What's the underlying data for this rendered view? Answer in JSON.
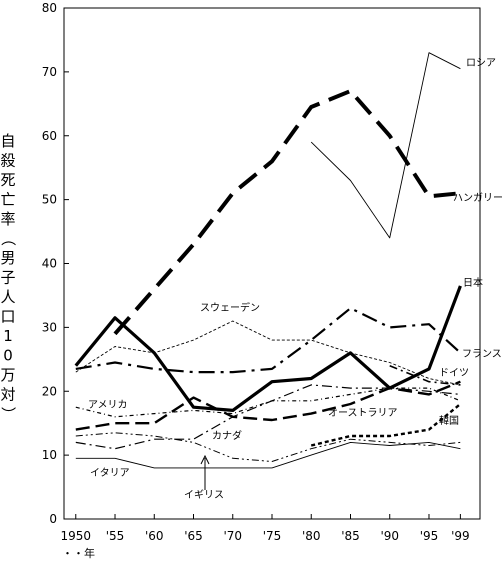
{
  "chart_data": {
    "type": "line",
    "ylabel": "自殺死亡率（男子人口10万対）",
    "xlabel": "年",
    "ylim": [
      0,
      80
    ],
    "yticks": [
      "0",
      "10",
      "20",
      "30",
      "40",
      "50",
      "60",
      "70",
      "80"
    ],
    "xticks": [
      "1950",
      "'55",
      "'60",
      "'65",
      "'70",
      "'75",
      "'80",
      "'85",
      "'90",
      "'95",
      "'99"
    ],
    "x": [
      1950,
      1955,
      1960,
      1965,
      1970,
      1975,
      1980,
      1985,
      1990,
      1995,
      1999
    ],
    "grid": false,
    "series": [
      {
        "name": "ハンガリー",
        "values": [
          null,
          29,
          36,
          43,
          51,
          56,
          64.5,
          67,
          60,
          50.5,
          51
        ]
      },
      {
        "name": "ロシア",
        "values": [
          null,
          null,
          null,
          null,
          null,
          null,
          59,
          53,
          44,
          73,
          70.5
        ]
      },
      {
        "name": "日本",
        "values": [
          24,
          31.5,
          26,
          17.5,
          17,
          21.5,
          22,
          26,
          20.5,
          23.5,
          36.5
        ]
      },
      {
        "name": "フランス",
        "values": [
          23.5,
          24.5,
          23.5,
          23,
          23,
          23.5,
          28,
          33,
          30,
          30.5,
          26
        ]
      },
      {
        "name": "スウェーデン",
        "values": [
          23,
          27,
          26,
          28,
          31,
          28,
          28,
          26,
          24.5,
          22,
          21
        ]
      },
      {
        "name": "ドイツ",
        "values": [
          null,
          null,
          null,
          null,
          null,
          null,
          null,
          null,
          24,
          21.5,
          21
        ]
      },
      {
        "name": "オーストラリア",
        "values": [
          14,
          15,
          15,
          19,
          16,
          15.5,
          16.5,
          18,
          20.5,
          19.5,
          21.5
        ]
      },
      {
        "name": "アメリカ",
        "values": [
          17.5,
          16,
          16.5,
          17,
          16.5,
          18.5,
          18.5,
          19.5,
          20.5,
          20.5,
          18.5
        ]
      },
      {
        "name": "カナダ",
        "values": [
          12,
          11,
          12.5,
          12.5,
          16,
          18.5,
          21,
          20.5,
          20.5,
          20,
          19.5
        ]
      },
      {
        "name": "韓国",
        "values": [
          null,
          null,
          null,
          null,
          null,
          null,
          11.5,
          13,
          13,
          14,
          18
        ]
      },
      {
        "name": "イギリス",
        "values": [
          13,
          13.5,
          13,
          12,
          9.5,
          9,
          11,
          12.5,
          12,
          11.5,
          12
        ]
      },
      {
        "name": "イタリア",
        "values": [
          9.5,
          9.5,
          8,
          8,
          8,
          8,
          10,
          12,
          11.5,
          12,
          11
        ]
      }
    ]
  }
}
